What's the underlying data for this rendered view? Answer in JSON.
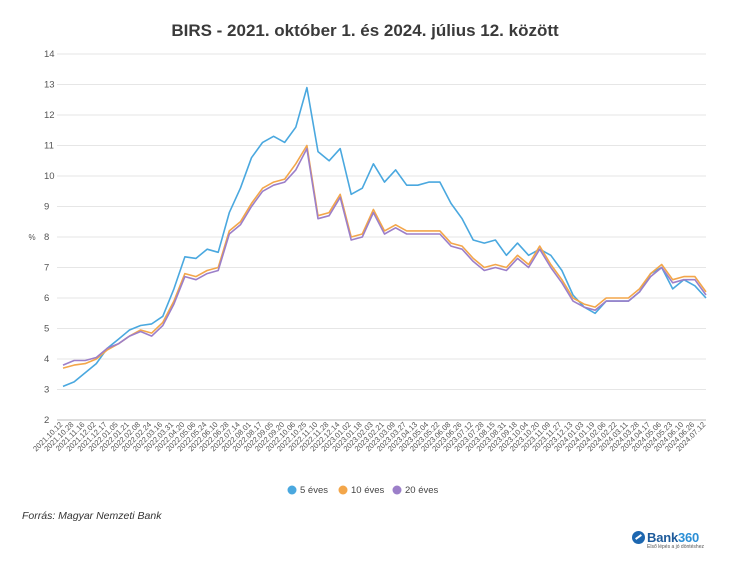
{
  "chart_data": {
    "type": "line",
    "title": "BIRS - 2021. október 1. és 2024. július 12. között",
    "ylabel": "%",
    "xlabel": "",
    "ylim": [
      2,
      14
    ],
    "yticks": [
      2,
      3,
      4,
      5,
      6,
      7,
      8,
      9,
      10,
      11,
      12,
      13,
      14
    ],
    "grid": true,
    "legend_position": "bottom-center",
    "x_tick_labels": [
      "2021.10.12",
      "2021.10.28",
      "2021.11.16",
      "2021.12.02",
      "2021.12.17",
      "2022.01.05",
      "2022.01.21",
      "2022.02.08",
      "2022.02.24",
      "2022.03.16",
      "2022.03.31",
      "2022.04.20",
      "2022.05.06",
      "2022.05.24",
      "2022.06.10",
      "2022.06.28",
      "2022.07.14",
      "2022.08.01",
      "2022.08.17",
      "2022.09.05",
      "2022.09.20",
      "2022.10.06",
      "2022.10.25",
      "2022.11.10",
      "2022.11.28",
      "2022.12.14",
      "2023.01.02",
      "2023.01.18",
      "2023.02.03",
      "2023.02.21",
      "2023.03.09",
      "2023.03.27",
      "2023.04.13",
      "2023.05.04",
      "2023.05.22",
      "2023.06.08",
      "2023.06.26",
      "2023.07.12",
      "2023.07.28",
      "2023.08.15",
      "2023.08.31",
      "2023.09.18",
      "2023.10.04",
      "2023.10.20",
      "2023.11.09",
      "2023.11.27",
      "2023.12.13",
      "2024.01.03",
      "2024.01.19",
      "2024.02.06",
      "2024.02.22",
      "2024.03.11",
      "2024.03.28",
      "2024.04.17",
      "2024.05.06",
      "2024.05.23",
      "2024.06.10",
      "2024.06.26",
      "2024.07.12"
    ],
    "series": [
      {
        "name": "5 éves",
        "color": "#4aa8df",
        "values": [
          3.1,
          3.25,
          3.55,
          3.85,
          4.35,
          4.65,
          4.95,
          5.1,
          5.15,
          5.4,
          6.3,
          7.35,
          7.3,
          7.6,
          7.5,
          8.8,
          9.6,
          10.6,
          11.1,
          11.3,
          11.1,
          11.6,
          12.9,
          10.8,
          10.5,
          10.9,
          9.4,
          9.6,
          10.4,
          9.8,
          10.2,
          9.7,
          9.7,
          9.8,
          9.8,
          9.1,
          8.6,
          7.9,
          7.8,
          7.9,
          7.4,
          7.8,
          7.4,
          7.6,
          7.4,
          6.9,
          6.1,
          5.7,
          5.5,
          5.9,
          5.9,
          5.9,
          6.2,
          6.8,
          7.0,
          6.3,
          6.6,
          6.4,
          6.0
        ]
      },
      {
        "name": "10 éves",
        "color": "#f3a64a",
        "values": [
          3.7,
          3.8,
          3.85,
          4.0,
          4.3,
          4.5,
          4.75,
          4.95,
          4.85,
          5.2,
          5.9,
          6.8,
          6.7,
          6.9,
          7.0,
          8.2,
          8.5,
          9.1,
          9.6,
          9.8,
          9.9,
          10.4,
          11.0,
          8.7,
          8.8,
          9.4,
          8.0,
          8.1,
          8.9,
          8.2,
          8.4,
          8.2,
          8.2,
          8.2,
          8.2,
          7.8,
          7.7,
          7.3,
          7.0,
          7.1,
          7.0,
          7.4,
          7.1,
          7.7,
          7.1,
          6.6,
          6.0,
          5.8,
          5.7,
          6.0,
          6.0,
          6.0,
          6.3,
          6.8,
          7.1,
          6.6,
          6.7,
          6.7,
          6.2
        ]
      },
      {
        "name": "20 éves",
        "color": "#9c7fc9",
        "values": [
          3.8,
          3.95,
          3.95,
          4.05,
          4.35,
          4.5,
          4.75,
          4.9,
          4.75,
          5.1,
          5.8,
          6.7,
          6.6,
          6.8,
          6.9,
          8.1,
          8.4,
          9.0,
          9.5,
          9.7,
          9.8,
          10.2,
          10.9,
          8.6,
          8.7,
          9.3,
          7.9,
          8.0,
          8.8,
          8.1,
          8.3,
          8.1,
          8.1,
          8.1,
          8.1,
          7.7,
          7.6,
          7.2,
          6.9,
          7.0,
          6.9,
          7.3,
          7.0,
          7.6,
          7.0,
          6.5,
          5.9,
          5.7,
          5.6,
          5.9,
          5.9,
          5.9,
          6.2,
          6.7,
          7.0,
          6.5,
          6.6,
          6.6,
          6.1
        ]
      }
    ]
  },
  "footer": {
    "source": "Forrás: Magyar Nemzeti Bank",
    "logo_text_main": "Bank",
    "logo_text_num": "360",
    "logo_tagline": "Első lépés a jó döntéshez"
  }
}
